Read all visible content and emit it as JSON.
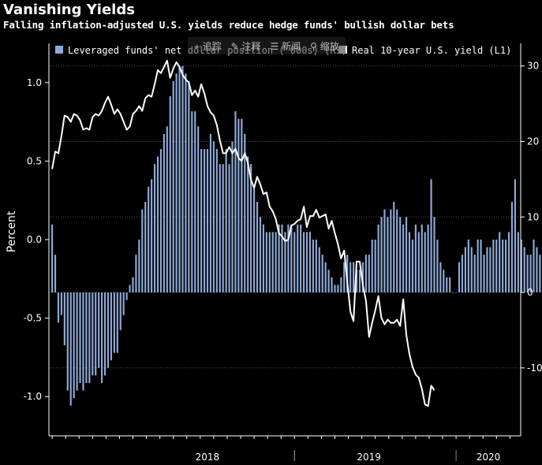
{
  "title": "Vanishing Yields",
  "subtitle": "Falling inflation-adjusted U.S. yields reduce hedge funds' bullish dollar bets",
  "toolbar": {
    "items": [
      {
        "icon": "crosshair-icon",
        "label": "追踪"
      },
      {
        "icon": "pencil-icon",
        "label": "注释"
      },
      {
        "icon": "news-icon",
        "label": "新闻"
      },
      {
        "icon": "zoom-icon",
        "label": "缩放"
      }
    ]
  },
  "chart_data": {
    "type": "bar+line",
    "ylabel_left": "Percent",
    "legend": [
      {
        "name": "Leveraged funds' net dollar position ('000s) (R1)",
        "color": "#8ea9d8",
        "kind": "bar"
      },
      {
        "name": "Real 10-year U.S. yield (L1)",
        "color": "#ffffff",
        "kind": "line"
      }
    ],
    "left_axis": {
      "ticks": [
        -1.0,
        -0.5,
        0.0,
        0.5,
        1.0
      ],
      "tick_labels": [
        "-1.0",
        "-0.5",
        "0.0",
        "0.5",
        "1.0"
      ],
      "range": [
        -1.25,
        1.25
      ]
    },
    "right_axis": {
      "ticks": [
        -10,
        0,
        10,
        20,
        30
      ],
      "tick_labels": [
        "-10",
        "0",
        "10",
        "20",
        "30"
      ],
      "range": [
        -19,
        33
      ]
    },
    "x_labels": [
      "2018",
      "2019",
      "2020"
    ],
    "x_range": [
      2017.48,
      2020.4
    ],
    "bars": {
      "start": 2017.5,
      "step": 0.01923,
      "values": [
        9,
        5,
        -4,
        -3,
        -7,
        -13,
        -15,
        -14,
        -13,
        -12,
        -13,
        -12,
        -12,
        -11,
        -11,
        -10,
        -12,
        -11,
        -10,
        -9,
        -8,
        -8,
        -5,
        -3,
        -1,
        1,
        2,
        5,
        7,
        11,
        12,
        14,
        15,
        17,
        18,
        19,
        21,
        22,
        26,
        28,
        29,
        30,
        30,
        29,
        28,
        24,
        24,
        22,
        19,
        19,
        19,
        21,
        20,
        19,
        17,
        17,
        19,
        17,
        20,
        24,
        23,
        23,
        21,
        18,
        17,
        14,
        12,
        10,
        9,
        8,
        8,
        8,
        8,
        9,
        9,
        8,
        9,
        9,
        8,
        9,
        9,
        8,
        8,
        8,
        7,
        7,
        6,
        5,
        4,
        3,
        2,
        1,
        1,
        2,
        4,
        5,
        4,
        4,
        3,
        3,
        4,
        5,
        5,
        7,
        7,
        9,
        10,
        11,
        10,
        11,
        12,
        11,
        10,
        9,
        10,
        8,
        7,
        9,
        8,
        9,
        8,
        9,
        15,
        10,
        7,
        4,
        3,
        2,
        2,
        0,
        0,
        4,
        5,
        6,
        7,
        6,
        5,
        7,
        7,
        5,
        6,
        6,
        7,
        7,
        8,
        7,
        7,
        8,
        12,
        15,
        8,
        7,
        6,
        5,
        5,
        7,
        6,
        5,
        4,
        3,
        2,
        1,
        -1
      ]
    },
    "line": {
      "start": 2017.5,
      "step": 0.01923,
      "values": [
        0.45,
        0.56,
        0.55,
        0.66,
        0.79,
        0.78,
        0.75,
        0.8,
        0.79,
        0.76,
        0.7,
        0.71,
        0.7,
        0.78,
        0.8,
        0.79,
        0.82,
        0.87,
        0.91,
        0.86,
        0.8,
        0.83,
        0.8,
        0.75,
        0.7,
        0.72,
        0.8,
        0.82,
        0.85,
        0.82,
        0.9,
        0.92,
        0.91,
        0.99,
        1.08,
        1.06,
        1.1,
        1.14,
        1.03,
        1.09,
        1.13,
        1.1,
        1.05,
        1.02,
        1.0,
        0.92,
        0.95,
        0.91,
        0.99,
        0.93,
        0.85,
        0.81,
        0.79,
        0.73,
        0.63,
        0.55,
        0.55,
        0.59,
        0.55,
        0.58,
        0.52,
        0.5,
        0.55,
        0.49,
        0.38,
        0.33,
        0.4,
        0.35,
        0.29,
        0.3,
        0.21,
        0.18,
        0.13,
        0.04,
        0.02,
        -0.01,
        0.0,
        0.09,
        0.1,
        0.12,
        0.13,
        0.21,
        0.08,
        0.15,
        0.15,
        0.19,
        0.14,
        0.15,
        0.16,
        0.07,
        0.12,
        0.04,
        -0.03,
        -0.12,
        -0.07,
        -0.27,
        -0.46,
        -0.52,
        -0.14,
        -0.14,
        -0.29,
        -0.39,
        -0.62,
        -0.53,
        -0.45,
        -0.36,
        -0.5,
        -0.54,
        -0.51,
        -0.53,
        -0.53,
        -0.51,
        -0.55,
        -0.38,
        -0.61,
        -0.73,
        -0.81,
        -0.86,
        -0.88,
        -0.95,
        -1.05,
        -1.06,
        -0.93,
        -0.96
      ]
    }
  }
}
